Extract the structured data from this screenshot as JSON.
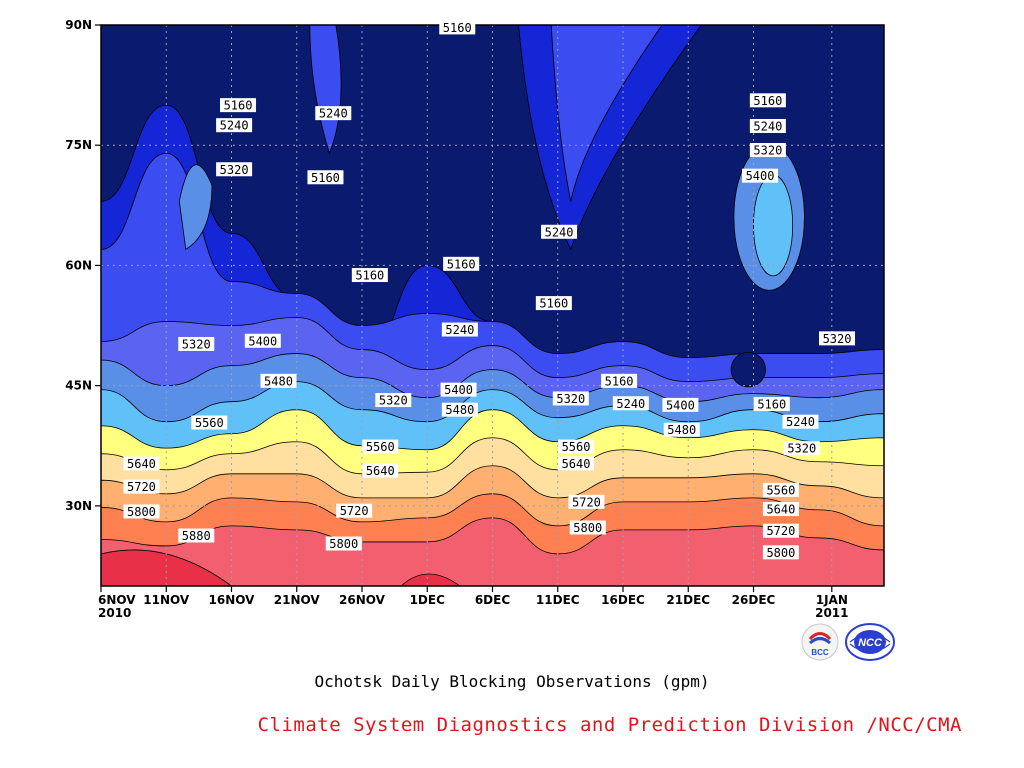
{
  "chart_data": {
    "type": "heatmap",
    "title": "Ochotsk Daily Blocking Observations (gpm)",
    "x_tick_labels": [
      {
        "label": "6NOV",
        "sub": "2010"
      },
      {
        "label": "11NOV"
      },
      {
        "label": "16NOV"
      },
      {
        "label": "21NOV"
      },
      {
        "label": "26NOV"
      },
      {
        "label": "1DEC"
      },
      {
        "label": "6DEC"
      },
      {
        "label": "11DEC"
      },
      {
        "label": "16DEC"
      },
      {
        "label": "21DEC"
      },
      {
        "label": "26DEC"
      },
      {
        "label": "1JAN",
        "sub": "2011"
      }
    ],
    "x_tick_days": [
      0,
      5,
      10,
      15,
      20,
      25,
      30,
      35,
      40,
      45,
      50,
      56
    ],
    "x_range_days": [
      0,
      60
    ],
    "y_ticks": [
      {
        "value": 30,
        "label": "30N"
      },
      {
        "value": 45,
        "label": "45N"
      },
      {
        "value": 60,
        "label": "60N"
      },
      {
        "value": 75,
        "label": "75N"
      },
      {
        "value": 90,
        "label": "90N"
      }
    ],
    "ylim": [
      20,
      90
    ],
    "grid": true,
    "contour_levels": [
      5160,
      5240,
      5320,
      5400,
      5480,
      5560,
      5640,
      5720,
      5800,
      5880
    ],
    "level_colors": [
      "#0a1a6e",
      "#1526d6",
      "#3b4cf0",
      "#5a64f0",
      "#5a8fe8",
      "#60c0f8",
      "#ffff80",
      "#ffe0a0",
      "#ffb070",
      "#ff8050",
      "#f26070",
      "#e83048"
    ],
    "band_boundaries_lat": [
      [
        50.5,
        48.2,
        44.5,
        40.0,
        36.5,
        33.2,
        29.8,
        25.8,
        0
      ],
      [
        53.0,
        45.0,
        40.5,
        37.2,
        34.5,
        31.5,
        28.0,
        25.0,
        0
      ],
      [
        52.5,
        47.5,
        43.0,
        39.0,
        36.5,
        34.0,
        31.0,
        27.5,
        0
      ],
      [
        53.5,
        49.0,
        45.5,
        42.0,
        38.0,
        34.0,
        30.5,
        27.0,
        0
      ],
      [
        49.5,
        46.0,
        42.0,
        37.5,
        34.0,
        31.0,
        28.0,
        25.5,
        0
      ],
      [
        47.0,
        43.5,
        40.5,
        37.0,
        34.2,
        31.0,
        28.5,
        25.5,
        0
      ],
      [
        50.0,
        47.0,
        44.5,
        42.0,
        38.5,
        35.0,
        31.5,
        28.5,
        0
      ],
      [
        46.0,
        43.5,
        41.0,
        38.0,
        34.5,
        31.0,
        27.5,
        24.0,
        0
      ],
      [
        47.5,
        45.0,
        42.5,
        40.0,
        37.0,
        33.5,
        30.5,
        27.0,
        0
      ],
      [
        45.5,
        43.0,
        40.5,
        38.5,
        36.0,
        33.5,
        30.5,
        27.0,
        0
      ],
      [
        46.0,
        44.0,
        42.0,
        39.5,
        37.0,
        34.0,
        31.0,
        27.5,
        0
      ],
      [
        46.0,
        43.5,
        40.5,
        38.0,
        35.5,
        32.5,
        29.5,
        26.0,
        0
      ],
      [
        46.5,
        44.5,
        41.5,
        38.5,
        35.0,
        31.0,
        27.5,
        24.5,
        0
      ]
    ],
    "upper_low_boundary_lat": [
      68,
      80,
      64,
      56,
      48,
      60,
      53,
      44,
      44,
      45,
      43,
      46,
      46
    ],
    "contour_labels": [
      {
        "text": "5160",
        "day": 10.5,
        "lat": 80.0
      },
      {
        "text": "5240",
        "day": 10.2,
        "lat": 77.5
      },
      {
        "text": "5320",
        "day": 10.2,
        "lat": 72.0
      },
      {
        "text": "5240",
        "day": 17.8,
        "lat": 79.0
      },
      {
        "text": "5160",
        "day": 17.2,
        "lat": 71.0
      },
      {
        "text": "5160",
        "day": 27.3,
        "lat": 89.7
      },
      {
        "text": "5160",
        "day": 20.6,
        "lat": 58.8
      },
      {
        "text": "5160",
        "day": 27.6,
        "lat": 60.2
      },
      {
        "text": "5240",
        "day": 27.5,
        "lat": 52.0
      },
      {
        "text": "5160",
        "day": 34.7,
        "lat": 55.3
      },
      {
        "text": "5240",
        "day": 35.1,
        "lat": 64.2
      },
      {
        "text": "5160",
        "day": 51.1,
        "lat": 80.6
      },
      {
        "text": "5240",
        "day": 51.1,
        "lat": 77.4
      },
      {
        "text": "5320",
        "day": 51.1,
        "lat": 74.4
      },
      {
        "text": "5400",
        "day": 50.5,
        "lat": 71.2
      },
      {
        "text": "5320",
        "day": 56.4,
        "lat": 50.9
      },
      {
        "text": "5320",
        "day": 7.3,
        "lat": 50.2
      },
      {
        "text": "5400",
        "day": 12.4,
        "lat": 50.6
      },
      {
        "text": "5480",
        "day": 13.6,
        "lat": 45.6
      },
      {
        "text": "5560",
        "day": 8.3,
        "lat": 40.4
      },
      {
        "text": "5640",
        "day": 3.1,
        "lat": 35.3
      },
      {
        "text": "5720",
        "day": 3.1,
        "lat": 32.4
      },
      {
        "text": "5800",
        "day": 3.1,
        "lat": 29.3
      },
      {
        "text": "5880",
        "day": 7.3,
        "lat": 26.3
      },
      {
        "text": "5320",
        "day": 22.4,
        "lat": 43.2
      },
      {
        "text": "5560",
        "day": 21.4,
        "lat": 37.4
      },
      {
        "text": "5640",
        "day": 21.4,
        "lat": 34.4
      },
      {
        "text": "5720",
        "day": 19.4,
        "lat": 29.4
      },
      {
        "text": "5800",
        "day": 18.6,
        "lat": 25.3
      },
      {
        "text": "5400",
        "day": 27.4,
        "lat": 44.5
      },
      {
        "text": "5480",
        "day": 27.5,
        "lat": 42.0
      },
      {
        "text": "5320",
        "day": 36.0,
        "lat": 43.4
      },
      {
        "text": "5560",
        "day": 36.4,
        "lat": 37.4
      },
      {
        "text": "5640",
        "day": 36.4,
        "lat": 35.3
      },
      {
        "text": "5720",
        "day": 37.2,
        "lat": 30.5
      },
      {
        "text": "5800",
        "day": 37.3,
        "lat": 27.3
      },
      {
        "text": "5160",
        "day": 39.7,
        "lat": 45.6
      },
      {
        "text": "5240",
        "day": 40.6,
        "lat": 42.8
      },
      {
        "text": "5400",
        "day": 44.4,
        "lat": 42.6
      },
      {
        "text": "5480",
        "day": 44.5,
        "lat": 39.5
      },
      {
        "text": "5160",
        "day": 51.4,
        "lat": 42.7
      },
      {
        "text": "5240",
        "day": 53.6,
        "lat": 40.5
      },
      {
        "text": "5320",
        "day": 53.7,
        "lat": 37.2
      },
      {
        "text": "5560",
        "day": 52.1,
        "lat": 32.0
      },
      {
        "text": "5640",
        "day": 52.1,
        "lat": 29.6
      },
      {
        "text": "5720",
        "day": 52.1,
        "lat": 26.9
      },
      {
        "text": "5800",
        "day": 52.1,
        "lat": 24.2
      }
    ]
  },
  "footer": {
    "title": "Ochotsk Daily Blocking Observations (gpm)",
    "credit": "Climate System Diagnostics and Prediction Division /NCC/CMA",
    "logo_left_text": "BCC",
    "logo_right_text": "NCC"
  }
}
